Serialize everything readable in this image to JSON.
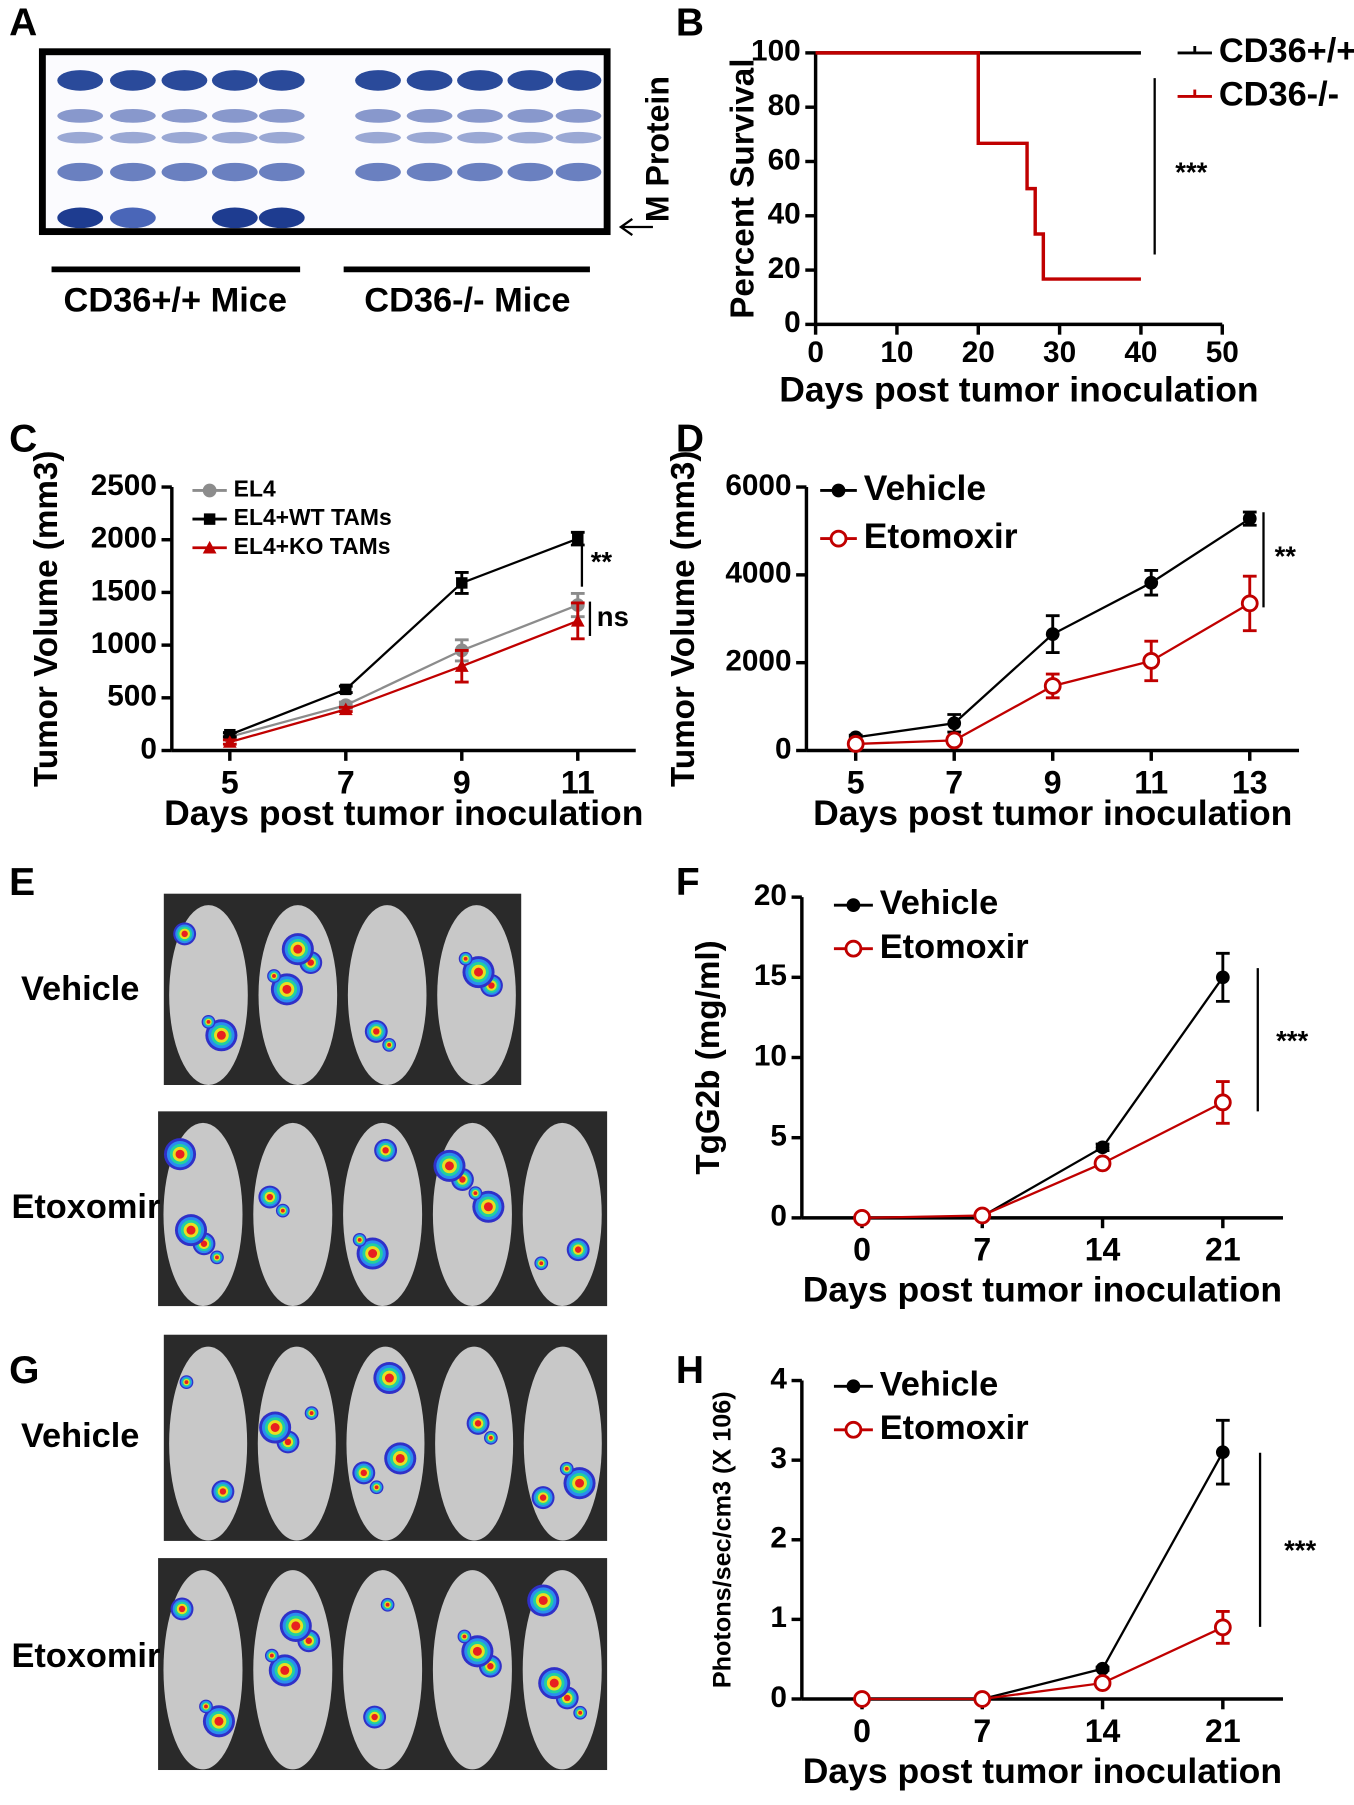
{
  "figure": {
    "panel_labels": [
      "A",
      "B",
      "C",
      "D",
      "E",
      "F",
      "G",
      "H"
    ],
    "gel": {
      "groups": [
        "CD36+/+ Mice",
        "CD36-/- Mice"
      ],
      "arrow_label": "M Protein"
    },
    "imaging_E": {
      "rows": [
        "Vehicle",
        "Etoxomir"
      ]
    },
    "imaging_G": {
      "rows": [
        "Vehicle",
        "Etoxomir"
      ]
    }
  },
  "chart_data": [
    {
      "type": "line",
      "xlabel": "Days post tumor inoculation",
      "ylabel": "Percent Survival",
      "xlim": [
        0,
        50
      ],
      "xticks": [
        0,
        10,
        20,
        30,
        40,
        50
      ],
      "ylim": [
        0,
        100
      ],
      "yticks": [
        0,
        20,
        40,
        60,
        80,
        100
      ],
      "legend": "outside right",
      "annotations": [
        "***"
      ],
      "series": [
        {
          "name": "CD36+/+",
          "color": "#000000",
          "marker": "none",
          "x": [
            0,
            40
          ],
          "values": [
            100,
            100
          ]
        },
        {
          "name": "CD36-/-",
          "color": "#c00000",
          "marker": "none",
          "x": [
            0,
            20,
            20,
            26,
            26,
            27,
            27,
            28,
            28,
            40
          ],
          "values": [
            100,
            100,
            66.7,
            66.7,
            50,
            50,
            33.3,
            33.3,
            16.7,
            16.7
          ]
        }
      ]
    },
    {
      "type": "line",
      "xlabel": "Days post tumor inoculation",
      "ylabel": "Tumor Volume (mm3)",
      "categories": [
        "5",
        "7",
        "9",
        "11"
      ],
      "ylim": [
        0,
        2500
      ],
      "yticks": [
        0,
        500,
        1000,
        1500,
        2000,
        2500
      ],
      "legend": "upper left",
      "annotations": [
        "**",
        "ns"
      ],
      "series": [
        {
          "name": "EL4",
          "color": "#8c8c8c",
          "marker": "circle",
          "values": [
            130,
            430,
            950,
            1380
          ],
          "errors": [
            20,
            30,
            100,
            110
          ]
        },
        {
          "name": "EL4+WT TAMs",
          "color": "#000000",
          "marker": "square",
          "values": [
            150,
            580,
            1590,
            2010
          ],
          "errors": [
            20,
            30,
            100,
            60
          ]
        },
        {
          "name": "EL4+KO TAMs",
          "color": "#c00000",
          "marker": "triangle",
          "values": [
            80,
            390,
            800,
            1230
          ],
          "errors": [
            20,
            20,
            150,
            170
          ]
        }
      ]
    },
    {
      "type": "line",
      "xlabel": "Days post tumor inoculation",
      "ylabel": "Tumor Volume (mm3)",
      "categories": [
        "5",
        "7",
        "9",
        "11",
        "13"
      ],
      "ylim": [
        0,
        6000
      ],
      "yticks": [
        0,
        2000,
        4000,
        6000
      ],
      "legend": "upper left",
      "annotations": [
        "**"
      ],
      "series": [
        {
          "name": "Vehicle",
          "color": "#000000",
          "marker": "circle",
          "values": [
            300,
            620,
            2650,
            3820,
            5280
          ],
          "errors": [
            50,
            200,
            420,
            280,
            150
          ]
        },
        {
          "name": "Etomoxir",
          "color": "#c00000",
          "marker": "open-circle",
          "values": [
            150,
            230,
            1470,
            2040,
            3350
          ],
          "errors": [
            50,
            50,
            270,
            450,
            620
          ]
        }
      ]
    },
    {
      "type": "line",
      "xlabel": "Days post tumor inoculation",
      "ylabel": "TgG2b (mg/ml)",
      "categories": [
        "0",
        "7",
        "14",
        "21"
      ],
      "ylim": [
        0,
        20
      ],
      "yticks": [
        0,
        5,
        10,
        15,
        20
      ],
      "legend": "upper left",
      "annotations": [
        "***"
      ],
      "series": [
        {
          "name": "Vehicle",
          "color": "#000000",
          "marker": "circle",
          "values": [
            0,
            0.1,
            4.4,
            15
          ],
          "errors": [
            0,
            0,
            0.2,
            1.5
          ]
        },
        {
          "name": "Etomoxir",
          "color": "#c00000",
          "marker": "open-circle",
          "values": [
            0,
            0.15,
            3.4,
            7.2
          ],
          "errors": [
            0,
            0,
            0.2,
            1.3
          ]
        }
      ]
    },
    {
      "type": "line",
      "xlabel": "Days post tumor inoculation",
      "ylabel": "Photons/sec/cm3 (X 106)",
      "categories": [
        "0",
        "7",
        "14",
        "21"
      ],
      "ylim": [
        0,
        4
      ],
      "yticks": [
        0,
        1,
        2,
        3,
        4
      ],
      "legend": "upper left",
      "annotations": [
        "***"
      ],
      "series": [
        {
          "name": "Vehicle",
          "color": "#000000",
          "marker": "circle",
          "values": [
            0,
            0,
            0.38,
            3.1
          ],
          "errors": [
            0,
            0,
            0.02,
            0.4
          ]
        },
        {
          "name": "Etomoxir",
          "color": "#c00000",
          "marker": "open-circle",
          "values": [
            0,
            0,
            0.2,
            0.9
          ],
          "errors": [
            0,
            0,
            0.02,
            0.2
          ]
        }
      ]
    }
  ]
}
